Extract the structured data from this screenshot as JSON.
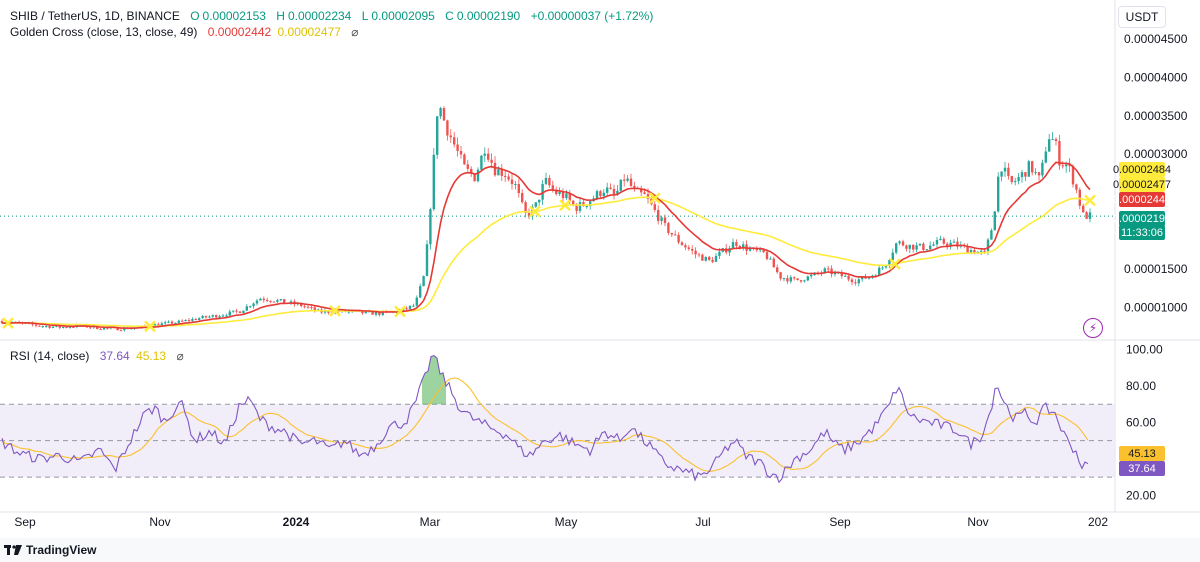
{
  "header": {
    "symbol": "SHIB / TetherUS, 1D, BINANCE",
    "o_label": "O",
    "o_value": "0.00002153",
    "h_label": "H",
    "h_value": "0.00002234",
    "l_label": "L",
    "l_value": "0.00002095",
    "c_label": "C",
    "c_value": "0.00002190",
    "change": "+0.00000037 (+1.72%)",
    "indicator": "Golden Cross (close, 13, close, 49)",
    "indicator_v1": "0.00002442",
    "indicator_v2": "0.00002477",
    "eye_icon": "eye-off-icon",
    "currency": "USDT"
  },
  "rsi_header": {
    "label": "RSI (14, close)",
    "v1": "37.64",
    "v2": "45.13",
    "eye_icon": "eye-off-icon"
  },
  "price_tags": {
    "yellow_1": "0.00002484",
    "yellow_2": "0.00002477",
    "red": "0.00002442",
    "current": "0.00002190",
    "countdown": "11:33:06"
  },
  "rsi_tags": {
    "ma": "45.13",
    "rsi": "37.64"
  },
  "footer": {
    "brand": "TradingView"
  },
  "colors": {
    "up": "#26a69a",
    "down": "#ef5350",
    "fast_ma": "#e53935",
    "slow_ma": "#ffeb3b",
    "rsi": "#7e57c2",
    "rsi_ma": "#fbc02d",
    "band": "#ede7f6",
    "current": "#089981"
  },
  "chart_data": {
    "type": "candlestick",
    "x_ticks": [
      "Sep",
      "Nov",
      "2024",
      "Mar",
      "May",
      "Jul",
      "Sep",
      "Nov",
      "202"
    ],
    "price_axis": {
      "ticks": [
        "0.00004500",
        "0.00004000",
        "0.00003500",
        "0.00003000",
        "0.00001500",
        "0.00001000"
      ],
      "tick_values": [
        4.5e-05,
        4e-05,
        3.5e-05,
        3e-05,
        1.5e-05,
        1e-05
      ],
      "ylim": [
        6e-06,
        4.62e-05
      ]
    },
    "rsi_axis": {
      "ticks": [
        "100.00",
        "80.00",
        "60.00",
        "20.00"
      ],
      "tick_values": [
        100,
        80,
        60,
        20
      ],
      "ylim": [
        12,
        103
      ],
      "band": [
        30,
        70
      ],
      "midline": 50
    },
    "price_anchors": [
      [
        0,
        8.2e-06
      ],
      [
        20,
        7.9e-06
      ],
      [
        40,
        7.6e-06
      ],
      [
        60,
        7.4e-06
      ],
      [
        80,
        7.6e-06
      ],
      [
        100,
        7.3e-06
      ],
      [
        120,
        7.2e-06
      ],
      [
        140,
        7.4e-06
      ],
      [
        160,
        7.8e-06
      ],
      [
        180,
        8.1e-06
      ],
      [
        200,
        8.6e-06
      ],
      [
        220,
        9e-06
      ],
      [
        240,
        9.5e-06
      ],
      [
        260,
        1.12e-05
      ],
      [
        280,
        1.08e-05
      ],
      [
        300,
        1.03e-05
      ],
      [
        320,
        9.4e-06
      ],
      [
        340,
        9.5e-06
      ],
      [
        360,
        9.3e-06
      ],
      [
        380,
        9.2e-06
      ],
      [
        400,
        9.5e-06
      ],
      [
        415,
        1.03e-05
      ],
      [
        425,
        1.45e-05
      ],
      [
        432,
        2.6e-05
      ],
      [
        438,
        3.7e-05
      ],
      [
        445,
        3.4e-05
      ],
      [
        455,
        3.1e-05
      ],
      [
        465,
        2.8e-05
      ],
      [
        475,
        2.7e-05
      ],
      [
        485,
        3.1e-05
      ],
      [
        495,
        2.8e-05
      ],
      [
        505,
        2.75e-05
      ],
      [
        515,
        2.6e-05
      ],
      [
        525,
        2.2e-05
      ],
      [
        535,
        2.3e-05
      ],
      [
        545,
        2.65e-05
      ],
      [
        555,
        2.5e-05
      ],
      [
        565,
        2.45e-05
      ],
      [
        575,
        2.3e-05
      ],
      [
        585,
        2.35e-05
      ],
      [
        595,
        2.45e-05
      ],
      [
        605,
        2.55e-05
      ],
      [
        615,
        2.45e-05
      ],
      [
        625,
        2.7e-05
      ],
      [
        635,
        2.5e-05
      ],
      [
        645,
        2.45e-05
      ],
      [
        655,
        2.25e-05
      ],
      [
        665,
        2.05e-05
      ],
      [
        680,
        1.85e-05
      ],
      [
        695,
        1.7e-05
      ],
      [
        710,
        1.6e-05
      ],
      [
        720,
        1.7e-05
      ],
      [
        735,
        1.85e-05
      ],
      [
        750,
        1.75e-05
      ],
      [
        765,
        1.7e-05
      ],
      [
        780,
        1.4e-05
      ],
      [
        795,
        1.35e-05
      ],
      [
        810,
        1.4e-05
      ],
      [
        825,
        1.48e-05
      ],
      [
        840,
        1.42e-05
      ],
      [
        855,
        1.35e-05
      ],
      [
        870,
        1.4e-05
      ],
      [
        885,
        1.55e-05
      ],
      [
        897,
        1.85e-05
      ],
      [
        910,
        1.8e-05
      ],
      [
        925,
        1.78e-05
      ],
      [
        940,
        1.85e-05
      ],
      [
        955,
        1.82e-05
      ],
      [
        970,
        1.75e-05
      ],
      [
        985,
        1.7e-05
      ],
      [
        993,
        2.1e-05
      ],
      [
        1000,
        2.9e-05
      ],
      [
        1010,
        2.6e-05
      ],
      [
        1020,
        2.7e-05
      ],
      [
        1030,
        2.85e-05
      ],
      [
        1040,
        2.65e-05
      ],
      [
        1048,
        3.25e-05
      ],
      [
        1055,
        3.15e-05
      ],
      [
        1060,
        2.9e-05
      ],
      [
        1068,
        2.85e-05
      ],
      [
        1075,
        2.6e-05
      ],
      [
        1083,
        2.2e-05
      ],
      [
        1090,
        2.19e-05
      ]
    ],
    "rsi_anchors": [
      [
        0,
        50
      ],
      [
        20,
        43
      ],
      [
        40,
        40
      ],
      [
        60,
        42
      ],
      [
        80,
        38
      ],
      [
        100,
        45
      ],
      [
        115,
        34
      ],
      [
        130,
        50
      ],
      [
        145,
        65
      ],
      [
        155,
        68
      ],
      [
        165,
        60
      ],
      [
        180,
        72
      ],
      [
        195,
        50
      ],
      [
        210,
        55
      ],
      [
        225,
        48
      ],
      [
        240,
        70
      ],
      [
        250,
        72
      ],
      [
        260,
        62
      ],
      [
        270,
        58
      ],
      [
        285,
        55
      ],
      [
        300,
        48
      ],
      [
        315,
        50
      ],
      [
        330,
        45
      ],
      [
        345,
        50
      ],
      [
        360,
        42
      ],
      [
        375,
        47
      ],
      [
        390,
        58
      ],
      [
        405,
        60
      ],
      [
        415,
        70
      ],
      [
        425,
        85
      ],
      [
        433,
        98
      ],
      [
        440,
        88
      ],
      [
        450,
        78
      ],
      [
        460,
        68
      ],
      [
        470,
        63
      ],
      [
        480,
        60
      ],
      [
        490,
        57
      ],
      [
        500,
        55
      ],
      [
        510,
        52
      ],
      [
        520,
        45
      ],
      [
        530,
        42
      ],
      [
        545,
        50
      ],
      [
        560,
        53
      ],
      [
        575,
        48
      ],
      [
        590,
        45
      ],
      [
        605,
        55
      ],
      [
        620,
        50
      ],
      [
        630,
        58
      ],
      [
        640,
        52
      ],
      [
        650,
        47
      ],
      [
        660,
        40
      ],
      [
        670,
        36
      ],
      [
        685,
        33
      ],
      [
        700,
        30
      ],
      [
        712,
        35
      ],
      [
        725,
        45
      ],
      [
        735,
        50
      ],
      [
        745,
        42
      ],
      [
        760,
        38
      ],
      [
        770,
        32
      ],
      [
        780,
        30
      ],
      [
        795,
        40
      ],
      [
        810,
        45
      ],
      [
        825,
        55
      ],
      [
        835,
        48
      ],
      [
        845,
        45
      ],
      [
        860,
        50
      ],
      [
        875,
        58
      ],
      [
        890,
        70
      ],
      [
        898,
        81
      ],
      [
        905,
        68
      ],
      [
        915,
        62
      ],
      [
        930,
        60
      ],
      [
        945,
        58
      ],
      [
        960,
        55
      ],
      [
        970,
        48
      ],
      [
        980,
        52
      ],
      [
        990,
        65
      ],
      [
        996,
        82
      ],
      [
        1005,
        70
      ],
      [
        1015,
        62
      ],
      [
        1025,
        65
      ],
      [
        1035,
        60
      ],
      [
        1045,
        68
      ],
      [
        1055,
        65
      ],
      [
        1065,
        52
      ],
      [
        1075,
        45
      ],
      [
        1083,
        35
      ],
      [
        1090,
        37.6
      ]
    ],
    "series": [
      {
        "name": "Golden Cross fast (close, 13)",
        "last": "0.00002442"
      },
      {
        "name": "Golden Cross slow (close, 49)",
        "last": "0.00002477"
      },
      {
        "name": "RSI (14, close)",
        "last": "37.64"
      },
      {
        "name": "RSI MA",
        "last": "45.13"
      }
    ],
    "cross_markers_x": [
      8,
      150,
      335,
      400,
      535,
      565,
      655,
      895,
      1090
    ],
    "current_price": 2.19e-05,
    "grid": false,
    "legend_position": "top-left"
  }
}
